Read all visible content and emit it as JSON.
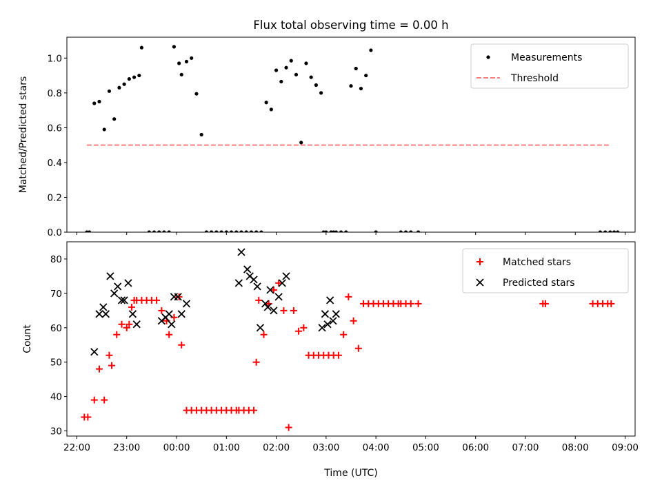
{
  "figure": {
    "title": "Flux total observing time = 0.00 h",
    "xlabel": "Time (UTC)"
  },
  "chart_data": [
    {
      "type": "scatter",
      "ylabel": "Matched/Predicted stars",
      "xlim": [
        21.8,
        33.2
      ],
      "ylim": [
        0.0,
        1.12
      ],
      "yticks": [
        0.0,
        0.2,
        0.4,
        0.6,
        0.8,
        1.0
      ],
      "xticks": [
        22,
        23,
        24,
        25,
        26,
        27,
        28,
        29,
        30,
        31,
        32,
        33
      ],
      "xtick_labels": [
        "22:00",
        "23:00",
        "00:00",
        "01:00",
        "02:00",
        "03:00",
        "04:00",
        "05:00",
        "06:00",
        "07:00",
        "08:00",
        "09:00"
      ],
      "legend": {
        "placement": "top-right",
        "entries": [
          "Measurements",
          "Threshold"
        ]
      },
      "threshold": {
        "name": "Threshold",
        "value": 0.5,
        "x_start": 22.2,
        "x_end": 32.7,
        "color": "#ff8080"
      },
      "series": [
        {
          "name": "Measurements",
          "marker": "dot",
          "color": "#000000",
          "x": [
            22.2,
            22.25,
            22.35,
            22.45,
            22.55,
            22.65,
            22.75,
            22.85,
            22.95,
            23.05,
            23.15,
            23.25,
            23.3,
            23.45,
            23.55,
            23.65,
            23.75,
            23.85,
            23.95,
            24.05,
            24.1,
            24.2,
            24.3,
            24.4,
            24.5,
            24.6,
            24.7,
            24.8,
            24.9,
            25.0,
            25.1,
            25.2,
            25.3,
            25.4,
            25.5,
            25.6,
            25.7,
            25.8,
            25.9,
            26.0,
            26.1,
            26.2,
            26.3,
            26.4,
            26.5,
            26.6,
            26.7,
            26.8,
            26.9,
            26.95,
            27.0,
            27.1,
            27.15,
            27.2,
            27.3,
            27.4,
            27.5,
            27.6,
            27.7,
            27.8,
            27.9,
            28.0,
            28.5,
            28.6,
            28.7,
            28.85,
            32.5,
            32.6,
            32.7,
            32.78,
            32.85
          ],
          "y": [
            0,
            0,
            0.74,
            0.75,
            0.59,
            0.81,
            0.65,
            0.83,
            0.85,
            0.88,
            0.89,
            0.9,
            1.06,
            0,
            0,
            0,
            0,
            0,
            1.065,
            0.97,
            0.905,
            0.98,
            1.0,
            0.795,
            0.56,
            0,
            0,
            0,
            0,
            0,
            0,
            0,
            0,
            0,
            0,
            0,
            0,
            0.745,
            0.705,
            0.93,
            0.865,
            0.945,
            0.985,
            0.905,
            0.515,
            0.97,
            0.89,
            0.845,
            0.8,
            0,
            0,
            0,
            0,
            0,
            0,
            0,
            0.84,
            0.94,
            0.825,
            0.9,
            1.045,
            0,
            0,
            0,
            0,
            0,
            0,
            0,
            0,
            0,
            0
          ]
        }
      ]
    },
    {
      "type": "scatter",
      "ylabel": "Count",
      "xlim": [
        21.8,
        33.2
      ],
      "ylim": [
        28.5,
        85
      ],
      "yticks": [
        30,
        40,
        50,
        60,
        70,
        80
      ],
      "xticks": [
        22,
        23,
        24,
        25,
        26,
        27,
        28,
        29,
        30,
        31,
        32,
        33
      ],
      "xtick_labels": [
        "22:00",
        "23:00",
        "00:00",
        "01:00",
        "02:00",
        "03:00",
        "04:00",
        "05:00",
        "06:00",
        "07:00",
        "08:00",
        "09:00"
      ],
      "legend": {
        "placement": "top-right",
        "entries": [
          "Matched stars",
          "Predicted stars"
        ]
      },
      "series": [
        {
          "name": "Matched stars",
          "marker": "plus",
          "color": "#ff0000",
          "x": [
            22.15,
            22.22,
            22.35,
            22.45,
            22.55,
            22.65,
            22.7,
            22.8,
            22.9,
            23.0,
            23.05,
            23.1,
            23.15,
            23.2,
            23.3,
            23.4,
            23.5,
            23.6,
            23.7,
            23.8,
            23.85,
            23.95,
            24.05,
            24.1,
            24.2,
            24.3,
            24.4,
            24.5,
            24.6,
            24.7,
            24.8,
            24.9,
            25.0,
            25.1,
            25.2,
            25.25,
            25.35,
            25.45,
            25.55,
            25.6,
            25.65,
            25.75,
            25.85,
            25.95,
            26.05,
            26.15,
            26.25,
            26.35,
            26.45,
            26.55,
            26.65,
            26.75,
            26.85,
            26.95,
            27.05,
            27.15,
            27.25,
            27.35,
            27.45,
            27.55,
            27.65,
            27.75,
            27.85,
            27.95,
            28.05,
            28.15,
            28.25,
            28.35,
            28.45,
            28.5,
            28.6,
            28.7,
            28.85,
            31.35,
            31.4,
            32.35,
            32.45,
            32.55,
            32.65,
            32.72
          ],
          "y": [
            34,
            34,
            39,
            48,
            39,
            52,
            49,
            58,
            61,
            60,
            61,
            66,
            68,
            68,
            68,
            68,
            68,
            68,
            65,
            62,
            58,
            63,
            69,
            55,
            36,
            36,
            36,
            36,
            36,
            36,
            36,
            36,
            36,
            36,
            36,
            36,
            36,
            36,
            36,
            50,
            68,
            58,
            67,
            71,
            73,
            65,
            31,
            65,
            59,
            60,
            52,
            52,
            52,
            52,
            52,
            52,
            52,
            58,
            69,
            62,
            54,
            67,
            67,
            67,
            67,
            67,
            67,
            67,
            67,
            67,
            67,
            67,
            67,
            67,
            67,
            67,
            67,
            67,
            67,
            67
          ]
        },
        {
          "name": "Predicted stars",
          "marker": "x",
          "color": "#000000",
          "x": [
            22.35,
            22.45,
            22.53,
            22.58,
            22.67,
            22.75,
            22.82,
            22.9,
            22.95,
            23.03,
            23.12,
            23.2,
            23.7,
            23.78,
            23.85,
            23.9,
            23.95,
            24.03,
            24.1,
            24.2,
            25.25,
            25.3,
            25.42,
            25.47,
            25.55,
            25.62,
            25.68,
            25.78,
            25.83,
            25.88,
            25.95,
            26.05,
            26.12,
            26.2,
            26.92,
            26.98,
            27.03,
            27.08,
            27.14,
            27.2
          ],
          "y": [
            53,
            64,
            66,
            64,
            75,
            70,
            72,
            68,
            68,
            73,
            64,
            61,
            62,
            63,
            64,
            61,
            69,
            69,
            64,
            67,
            73,
            82,
            77,
            75,
            74,
            72,
            60,
            67,
            66,
            71,
            65,
            69,
            73,
            75,
            60,
            64,
            61,
            68,
            62,
            64
          ]
        }
      ]
    }
  ]
}
